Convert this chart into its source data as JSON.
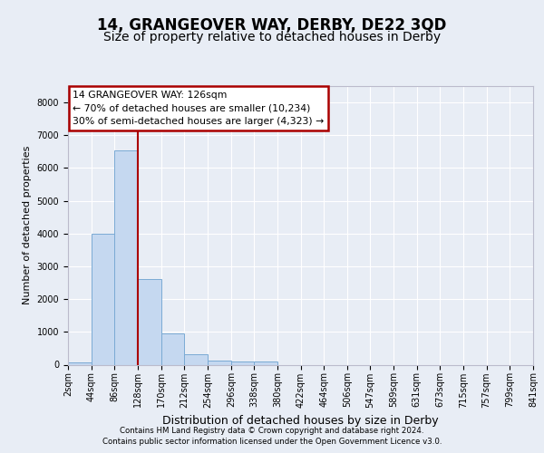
{
  "title": "14, GRANGEOVER WAY, DERBY, DE22 3QD",
  "subtitle": "Size of property relative to detached houses in Derby",
  "xlabel": "Distribution of detached houses by size in Derby",
  "ylabel": "Number of detached properties",
  "footer_line1": "Contains HM Land Registry data © Crown copyright and database right 2024.",
  "footer_line2": "Contains public sector information licensed under the Open Government Licence v3.0.",
  "bar_edges": [
    2,
    44,
    86,
    128,
    170,
    212,
    254,
    296,
    338,
    380,
    422,
    464,
    506,
    547,
    589,
    631,
    673,
    715,
    757,
    799,
    841
  ],
  "bar_heights": [
    75,
    4000,
    6550,
    2620,
    950,
    330,
    130,
    110,
    95,
    0,
    0,
    0,
    0,
    0,
    0,
    0,
    0,
    0,
    0,
    0
  ],
  "bar_color": "#c5d8f0",
  "bar_edge_color": "#7aaad4",
  "vline_x": 128,
  "vline_color": "#aa0000",
  "annotation_line1": "14 GRANGEOVER WAY: 126sqm",
  "annotation_line2": "← 70% of detached houses are smaller (10,234)",
  "annotation_line3": "30% of semi-detached houses are larger (4,323) →",
  "annotation_box_color": "#aa0000",
  "ylim": [
    0,
    8500
  ],
  "yticks": [
    0,
    1000,
    2000,
    3000,
    4000,
    5000,
    6000,
    7000,
    8000
  ],
  "bg_color": "#e8edf5",
  "plot_bg_color": "#e8edf5",
  "grid_color": "#ffffff",
  "title_fontsize": 12,
  "subtitle_fontsize": 10,
  "ylabel_fontsize": 8,
  "xlabel_fontsize": 9,
  "tick_fontsize": 7,
  "tick_labels": [
    "2sqm",
    "44sqm",
    "86sqm",
    "128sqm",
    "170sqm",
    "212sqm",
    "254sqm",
    "296sqm",
    "338sqm",
    "380sqm",
    "422sqm",
    "464sqm",
    "506sqm",
    "547sqm",
    "589sqm",
    "631sqm",
    "673sqm",
    "715sqm",
    "757sqm",
    "799sqm",
    "841sqm"
  ]
}
